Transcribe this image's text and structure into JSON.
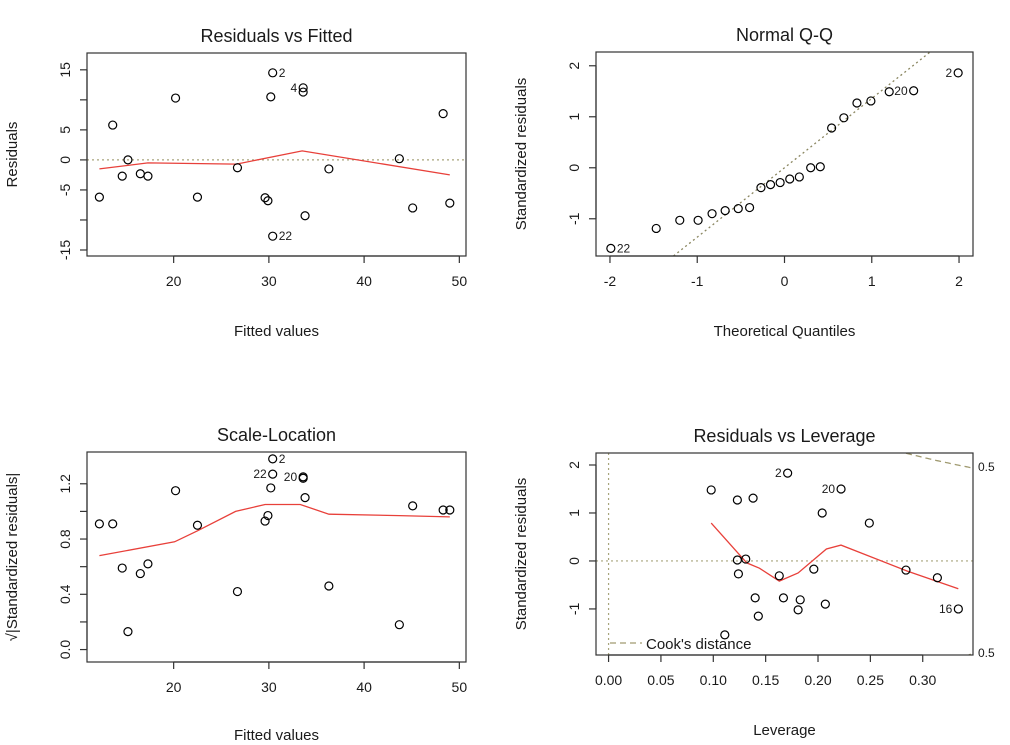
{
  "colors": {
    "points": "#000000",
    "smooth": "#e8403a",
    "reference": "#a8a47c",
    "cooks": "#a09a70",
    "axis": "#333333"
  },
  "chart_data": [
    {
      "type": "scatter",
      "title": "Residuals vs Fitted",
      "xlabel": "Fitted values",
      "ylabel": "Residuals",
      "xlim": [
        10.9,
        50.7
      ],
      "ylim": [
        -16,
        17.8
      ],
      "xticks": {
        "values": [
          20,
          30,
          40,
          50
        ],
        "labels": [
          "20",
          "30",
          "40",
          "50"
        ]
      },
      "yticks": {
        "values": [
          -15,
          -10,
          -5,
          0,
          5,
          10,
          15
        ],
        "labels": [
          "-15",
          "",
          "-5",
          "0",
          "5",
          "",
          "15"
        ]
      },
      "hline": 0,
      "points": [
        [
          12.2,
          -6.2
        ],
        [
          13.6,
          5.8
        ],
        [
          14.6,
          -2.7
        ],
        [
          15.2,
          0
        ],
        [
          16.5,
          -2.3
        ],
        [
          17.3,
          -2.7
        ],
        [
          20.2,
          10.3
        ],
        [
          22.5,
          -6.2
        ],
        [
          26.7,
          -1.3
        ],
        [
          29.6,
          -6.3
        ],
        [
          29.9,
          -6.8
        ],
        [
          30.2,
          10.5
        ],
        [
          30.4,
          14.5
        ],
        [
          30.4,
          -12.7
        ],
        [
          33.6,
          12.0
        ],
        [
          33.6,
          11.3
        ],
        [
          33.8,
          -9.3
        ],
        [
          36.3,
          -1.5
        ],
        [
          43.7,
          0.2
        ],
        [
          45.1,
          -8.0
        ],
        [
          48.3,
          7.7
        ],
        [
          49.0,
          -7.2
        ]
      ],
      "smooth": [
        [
          12.2,
          -1.5
        ],
        [
          17.3,
          -0.5
        ],
        [
          26.6,
          -0.7
        ],
        [
          33.5,
          1.5
        ],
        [
          49.0,
          -2.5
        ]
      ],
      "point_labels": [
        {
          "label": "2",
          "x": 30.4,
          "y": 14.5
        },
        {
          "label": "4",
          "x": 33.6,
          "y": 12.0
        },
        {
          "label": "22",
          "x": 30.4,
          "y": -12.7
        }
      ]
    },
    {
      "type": "scatter",
      "title": "Normal Q-Q",
      "xlabel": "Theoretical Quantiles",
      "ylabel": "Standardized residuals",
      "xlim": [
        -2.16,
        2.16
      ],
      "ylim": [
        -1.73,
        2.27
      ],
      "xticks": {
        "values": [
          -2,
          -1,
          0,
          1,
          2
        ],
        "labels": [
          "-2",
          "-1",
          "0",
          "1",
          "2"
        ]
      },
      "yticks": {
        "values": [
          -1,
          0,
          1,
          2
        ],
        "labels": [
          "-1",
          "0",
          "1",
          "2"
        ]
      },
      "qqline": {
        "intercept": 0,
        "slope": 1.36
      },
      "points": [
        [
          -1.99,
          -1.58
        ],
        [
          -1.47,
          -1.19
        ],
        [
          -1.2,
          -1.03
        ],
        [
          -0.99,
          -1.03
        ],
        [
          -0.83,
          -0.9
        ],
        [
          -0.68,
          -0.84
        ],
        [
          -0.53,
          -0.8
        ],
        [
          -0.4,
          -0.78
        ],
        [
          -0.27,
          -0.39
        ],
        [
          -0.16,
          -0.33
        ],
        [
          -0.05,
          -0.29
        ],
        [
          0.06,
          -0.22
        ],
        [
          0.17,
          -0.18
        ],
        [
          0.3,
          0.0
        ],
        [
          0.41,
          0.02
        ],
        [
          0.54,
          0.78
        ],
        [
          0.68,
          0.98
        ],
        [
          0.83,
          1.27
        ],
        [
          0.99,
          1.31
        ],
        [
          1.2,
          1.49
        ],
        [
          1.48,
          1.51
        ],
        [
          1.99,
          1.86
        ]
      ],
      "point_labels": [
        {
          "label": "22",
          "x": -1.99,
          "y": -1.58
        },
        {
          "label": "20",
          "x": 1.48,
          "y": 1.51
        },
        {
          "label": "2",
          "x": 1.99,
          "y": 1.86
        }
      ]
    },
    {
      "type": "scatter",
      "title": "Scale-Location",
      "xlabel": "Fitted values",
      "ylabel": "√|Standardized residuals|",
      "xlim": [
        10.9,
        50.7
      ],
      "ylim": [
        -0.09,
        1.43
      ],
      "xticks": {
        "values": [
          20,
          30,
          40,
          50
        ],
        "labels": [
          "20",
          "30",
          "40",
          "50"
        ]
      },
      "yticks": {
        "values": [
          0,
          0.2,
          0.4,
          0.6,
          0.8,
          1.0,
          1.2
        ],
        "labels": [
          "0.0",
          "",
          "0.4",
          "",
          "0.8",
          "",
          "1.2"
        ]
      },
      "points": [
        [
          12.2,
          0.91
        ],
        [
          13.6,
          0.91
        ],
        [
          14.6,
          0.59
        ],
        [
          15.2,
          0.13
        ],
        [
          16.5,
          0.55
        ],
        [
          17.3,
          0.62
        ],
        [
          20.2,
          1.15
        ],
        [
          22.5,
          0.9
        ],
        [
          26.7,
          0.42
        ],
        [
          29.6,
          0.93
        ],
        [
          29.9,
          0.97
        ],
        [
          30.2,
          1.17
        ],
        [
          30.4,
          1.38
        ],
        [
          30.4,
          1.27
        ],
        [
          33.6,
          1.25
        ],
        [
          33.6,
          1.24
        ],
        [
          33.8,
          1.1
        ],
        [
          36.3,
          0.46
        ],
        [
          43.7,
          0.18
        ],
        [
          45.1,
          1.04
        ],
        [
          48.3,
          1.01
        ],
        [
          49.0,
          1.01
        ]
      ],
      "smooth": [
        [
          12.2,
          0.68
        ],
        [
          20.1,
          0.78
        ],
        [
          22.5,
          0.86
        ],
        [
          26.5,
          1.0
        ],
        [
          29.6,
          1.05
        ],
        [
          33.3,
          1.05
        ],
        [
          36.3,
          0.98
        ],
        [
          43.7,
          0.97
        ],
        [
          49.0,
          0.96
        ]
      ],
      "point_labels": [
        {
          "label": "2",
          "x": 30.4,
          "y": 1.38
        },
        {
          "label": "22",
          "x": 30.4,
          "y": 1.27
        },
        {
          "label": "20",
          "x": 33.6,
          "y": 1.25
        }
      ]
    },
    {
      "type": "scatter",
      "title": "Residuals vs Leverage",
      "xlabel": "Leverage",
      "ylabel": "Standardized residuals",
      "xlim": [
        -0.012,
        0.348
      ],
      "ylim": [
        -1.96,
        2.25
      ],
      "xticks": {
        "values": [
          0,
          0.05,
          0.1,
          0.15,
          0.2,
          0.25,
          0.3
        ],
        "labels": [
          "0.00",
          "0.05",
          "0.10",
          "0.15",
          "0.20",
          "0.25",
          "0.30"
        ]
      },
      "yticks": {
        "values": [
          -1,
          0,
          1,
          2
        ],
        "labels": [
          "-1",
          "0",
          "1",
          "2"
        ]
      },
      "hline": 0,
      "vline": 0,
      "points": [
        [
          0.098,
          1.48
        ],
        [
          0.123,
          1.27
        ],
        [
          0.138,
          1.31
        ],
        [
          0.171,
          1.83
        ],
        [
          0.222,
          1.5
        ],
        [
          0.204,
          1.0
        ],
        [
          0.249,
          0.79
        ],
        [
          0.123,
          0.02
        ],
        [
          0.131,
          0.04
        ],
        [
          0.124,
          -0.27
        ],
        [
          0.163,
          -0.31
        ],
        [
          0.196,
          -0.17
        ],
        [
          0.284,
          -0.19
        ],
        [
          0.314,
          -0.35
        ],
        [
          0.14,
          -0.77
        ],
        [
          0.167,
          -0.77
        ],
        [
          0.183,
          -0.81
        ],
        [
          0.181,
          -1.02
        ],
        [
          0.207,
          -0.9
        ],
        [
          0.143,
          -1.15
        ],
        [
          0.111,
          -1.54
        ],
        [
          0.334,
          -1.0
        ]
      ],
      "smooth": [
        [
          0.098,
          0.79
        ],
        [
          0.132,
          -0.04
        ],
        [
          0.144,
          -0.15
        ],
        [
          0.163,
          -0.42
        ],
        [
          0.181,
          -0.25
        ],
        [
          0.208,
          0.25
        ],
        [
          0.222,
          0.33
        ],
        [
          0.285,
          -0.21
        ],
        [
          0.334,
          -0.58
        ]
      ],
      "point_labels": [
        {
          "label": "2",
          "x": 0.171,
          "y": 1.83
        },
        {
          "label": "20",
          "x": 0.222,
          "y": 1.5
        },
        {
          "label": "16",
          "x": 0.334,
          "y": -1.0
        }
      ],
      "cooks": {
        "levels": [
          0.5
        ],
        "labels": [
          "0.5",
          "0.5"
        ],
        "n_params": 4,
        "legend": "Cook's distance"
      }
    }
  ]
}
